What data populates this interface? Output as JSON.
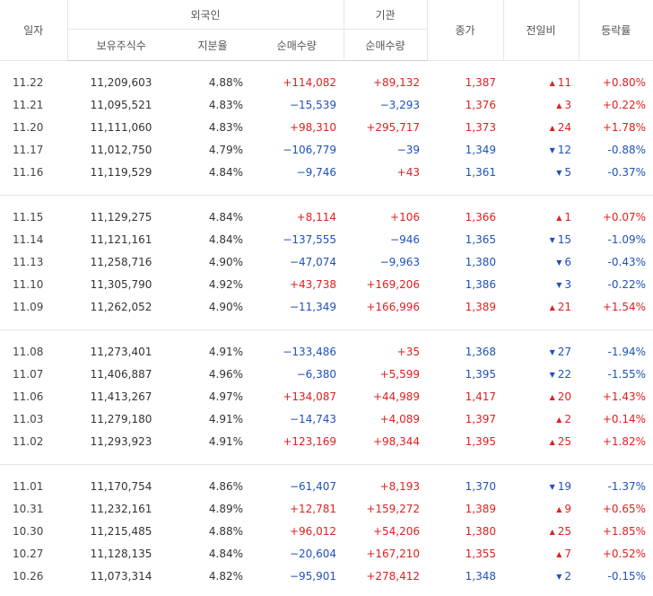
{
  "header": {
    "date": "일자",
    "foreign_group": "외국인",
    "institution_group": "기관",
    "holdings": "보유주식수",
    "share": "지분율",
    "foreign_net": "순매수량",
    "institution_net": "순매수량",
    "close": "종가",
    "change": "전일비",
    "rate": "등락률"
  },
  "groups": [
    [
      {
        "date": "11.22",
        "holdings": "11,209,603",
        "share": "4.88%",
        "foreign_net": "+114,082",
        "inst_net": "+89,132",
        "close": "1,387",
        "dir": "up",
        "change": "11",
        "rate": "+0.80%"
      },
      {
        "date": "11.21",
        "holdings": "11,095,521",
        "share": "4.83%",
        "foreign_net": "−15,539",
        "inst_net": "−3,293",
        "close": "1,376",
        "dir": "up",
        "change": "3",
        "rate": "+0.22%"
      },
      {
        "date": "11.20",
        "holdings": "11,111,060",
        "share": "4.83%",
        "foreign_net": "+98,310",
        "inst_net": "+295,717",
        "close": "1,373",
        "dir": "up",
        "change": "24",
        "rate": "+1.78%"
      },
      {
        "date": "11.17",
        "holdings": "11,012,750",
        "share": "4.79%",
        "foreign_net": "−106,779",
        "inst_net": "−39",
        "close": "1,349",
        "dir": "down",
        "change": "12",
        "rate": "-0.88%"
      },
      {
        "date": "11.16",
        "holdings": "11,119,529",
        "share": "4.84%",
        "foreign_net": "−9,746",
        "inst_net": "+43",
        "close": "1,361",
        "dir": "down",
        "change": "5",
        "rate": "-0.37%"
      }
    ],
    [
      {
        "date": "11.15",
        "holdings": "11,129,275",
        "share": "4.84%",
        "foreign_net": "+8,114",
        "inst_net": "+106",
        "close": "1,366",
        "dir": "up",
        "change": "1",
        "rate": "+0.07%"
      },
      {
        "date": "11.14",
        "holdings": "11,121,161",
        "share": "4.84%",
        "foreign_net": "−137,555",
        "inst_net": "−946",
        "close": "1,365",
        "dir": "down",
        "change": "15",
        "rate": "-1.09%"
      },
      {
        "date": "11.13",
        "holdings": "11,258,716",
        "share": "4.90%",
        "foreign_net": "−47,074",
        "inst_net": "−9,963",
        "close": "1,380",
        "dir": "down",
        "change": "6",
        "rate": "-0.43%"
      },
      {
        "date": "11.10",
        "holdings": "11,305,790",
        "share": "4.92%",
        "foreign_net": "+43,738",
        "inst_net": "+169,206",
        "close": "1,386",
        "dir": "down",
        "change": "3",
        "rate": "-0.22%"
      },
      {
        "date": "11.09",
        "holdings": "11,262,052",
        "share": "4.90%",
        "foreign_net": "−11,349",
        "inst_net": "+166,996",
        "close": "1,389",
        "dir": "up",
        "change": "21",
        "rate": "+1.54%"
      }
    ],
    [
      {
        "date": "11.08",
        "holdings": "11,273,401",
        "share": "4.91%",
        "foreign_net": "−133,486",
        "inst_net": "+35",
        "close": "1,368",
        "dir": "down",
        "change": "27",
        "rate": "-1.94%"
      },
      {
        "date": "11.07",
        "holdings": "11,406,887",
        "share": "4.96%",
        "foreign_net": "−6,380",
        "inst_net": "+5,599",
        "close": "1,395",
        "dir": "down",
        "change": "22",
        "rate": "-1.55%"
      },
      {
        "date": "11.06",
        "holdings": "11,413,267",
        "share": "4.97%",
        "foreign_net": "+134,087",
        "inst_net": "+44,989",
        "close": "1,417",
        "dir": "up",
        "change": "20",
        "rate": "+1.43%"
      },
      {
        "date": "11.03",
        "holdings": "11,279,180",
        "share": "4.91%",
        "foreign_net": "−14,743",
        "inst_net": "+4,089",
        "close": "1,397",
        "dir": "up",
        "change": "2",
        "rate": "+0.14%"
      },
      {
        "date": "11.02",
        "holdings": "11,293,923",
        "share": "4.91%",
        "foreign_net": "+123,169",
        "inst_net": "+98,344",
        "close": "1,395",
        "dir": "up",
        "change": "25",
        "rate": "+1.82%"
      }
    ],
    [
      {
        "date": "11.01",
        "holdings": "11,170,754",
        "share": "4.86%",
        "foreign_net": "−61,407",
        "inst_net": "+8,193",
        "close": "1,370",
        "dir": "down",
        "change": "19",
        "rate": "-1.37%"
      },
      {
        "date": "10.31",
        "holdings": "11,232,161",
        "share": "4.89%",
        "foreign_net": "+12,781",
        "inst_net": "+159,272",
        "close": "1,389",
        "dir": "up",
        "change": "9",
        "rate": "+0.65%"
      },
      {
        "date": "10.30",
        "holdings": "11,215,485",
        "share": "4.88%",
        "foreign_net": "+96,012",
        "inst_net": "+54,206",
        "close": "1,380",
        "dir": "up",
        "change": "25",
        "rate": "+1.85%"
      },
      {
        "date": "10.27",
        "holdings": "11,128,135",
        "share": "4.84%",
        "foreign_net": "−20,604",
        "inst_net": "+167,210",
        "close": "1,355",
        "dir": "up",
        "change": "7",
        "rate": "+0.52%"
      },
      {
        "date": "10.26",
        "holdings": "11,073,314",
        "share": "4.82%",
        "foreign_net": "−95,901",
        "inst_net": "+278,412",
        "close": "1,348",
        "dir": "down",
        "change": "2",
        "rate": "-0.15%"
      }
    ]
  ],
  "colors": {
    "up": "#e02020",
    "down": "#1f52b8"
  },
  "icons": {
    "up": "up-triangle-icon",
    "down": "down-triangle-icon"
  }
}
